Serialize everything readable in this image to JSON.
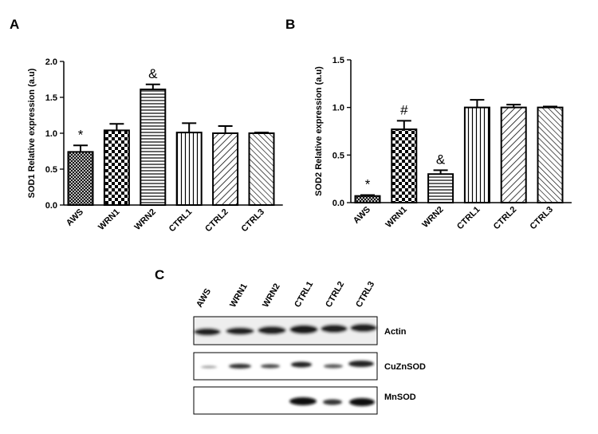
{
  "panel_labels": [
    "A",
    "B",
    "C"
  ],
  "chart_data": [
    {
      "type": "bar",
      "y_label": "SOD1 Relative expression (a.u)",
      "categories": [
        "AWS",
        "WRN1",
        "WRN2",
        "CTRL1",
        "CTRL2",
        "CTRL3"
      ],
      "values": [
        0.74,
        1.04,
        1.61,
        1.01,
        1.0,
        1.0
      ],
      "errors": [
        0.09,
        0.09,
        0.07,
        0.13,
        0.1,
        0.01
      ],
      "annotations": [
        "*",
        null,
        "&",
        null,
        null,
        null
      ],
      "color": "#000000",
      "ylim": [
        0,
        2.0
      ],
      "yticks": [
        {
          "value": 0,
          "label": "0.0"
        },
        {
          "value": 0.5,
          "label": "0.5"
        },
        {
          "value": 1.0,
          "label": "1.0"
        },
        {
          "value": 1.5,
          "label": "1.5"
        },
        {
          "value": 2.0,
          "label": "2.0"
        }
      ]
    },
    {
      "type": "bar",
      "y_label": "SOD2 Relative expression (a.u)",
      "categories": [
        "AWS",
        "WRN1",
        "WRN2",
        "CTRL1",
        "CTRL2",
        "CTRL3"
      ],
      "values": [
        0.07,
        0.77,
        0.3,
        1.0,
        1.0,
        1.0
      ],
      "errors": [
        0.01,
        0.09,
        0.04,
        0.08,
        0.03,
        0.01
      ],
      "annotations": [
        "*",
        "#",
        "&",
        null,
        null,
        null
      ],
      "color": "#000000",
      "ylim": [
        0,
        1.5
      ],
      "yticks": [
        {
          "value": 0,
          "label": "0.0"
        },
        {
          "value": 0.5,
          "label": "0.5"
        },
        {
          "value": 1.0,
          "label": "1.0"
        },
        {
          "value": 1.5,
          "label": "1.5"
        }
      ]
    }
  ],
  "blot": {
    "lanes": [
      "AWS",
      "WRN1",
      "WRN2",
      "CTRL1",
      "CTRL2",
      "CTRL3"
    ],
    "rows": [
      "Actin",
      "CuZnSOD",
      "MnSOD"
    ]
  }
}
